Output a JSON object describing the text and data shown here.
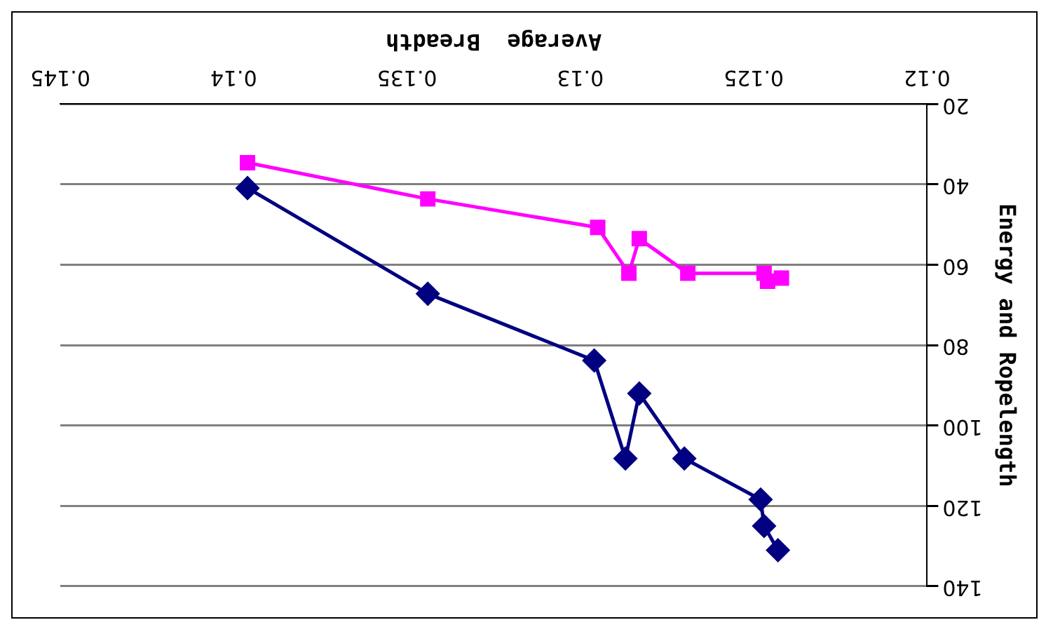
{
  "chart_data": {
    "type": "line",
    "xlabel": "Average  Breadth",
    "ylabel": "Energy and Ropelength",
    "xlim": [
      0.145,
      0.12
    ],
    "xticks": [
      0.12,
      0.125,
      0.13,
      0.135,
      0.14,
      0.145
    ],
    "ylim": [
      140,
      20
    ],
    "yticks": [
      20,
      40,
      60,
      80,
      100,
      120,
      140
    ],
    "grid": "y",
    "legend": false,
    "line_style": "solid",
    "series": [
      {
        "color": "#ff00ff",
        "marker": "square",
        "x": [
          0.1396,
          0.1344,
          0.1295,
          0.1286,
          0.1283,
          0.1269,
          0.1247,
          0.1246,
          0.1242
        ],
        "values": [
          34.6,
          43.6,
          50.7,
          62.1,
          53.5,
          62.1,
          62.1,
          64.1,
          63.3
        ]
      },
      {
        "color": "#000080",
        "marker": "diamond",
        "x": [
          0.1396,
          0.1344,
          0.1296,
          0.1287,
          0.1283,
          0.127,
          0.1248,
          0.1247,
          0.1243
        ],
        "values": [
          40.9,
          67.2,
          83.8,
          108.2,
          92,
          108.2,
          118.4,
          125,
          131
        ]
      }
    ]
  }
}
